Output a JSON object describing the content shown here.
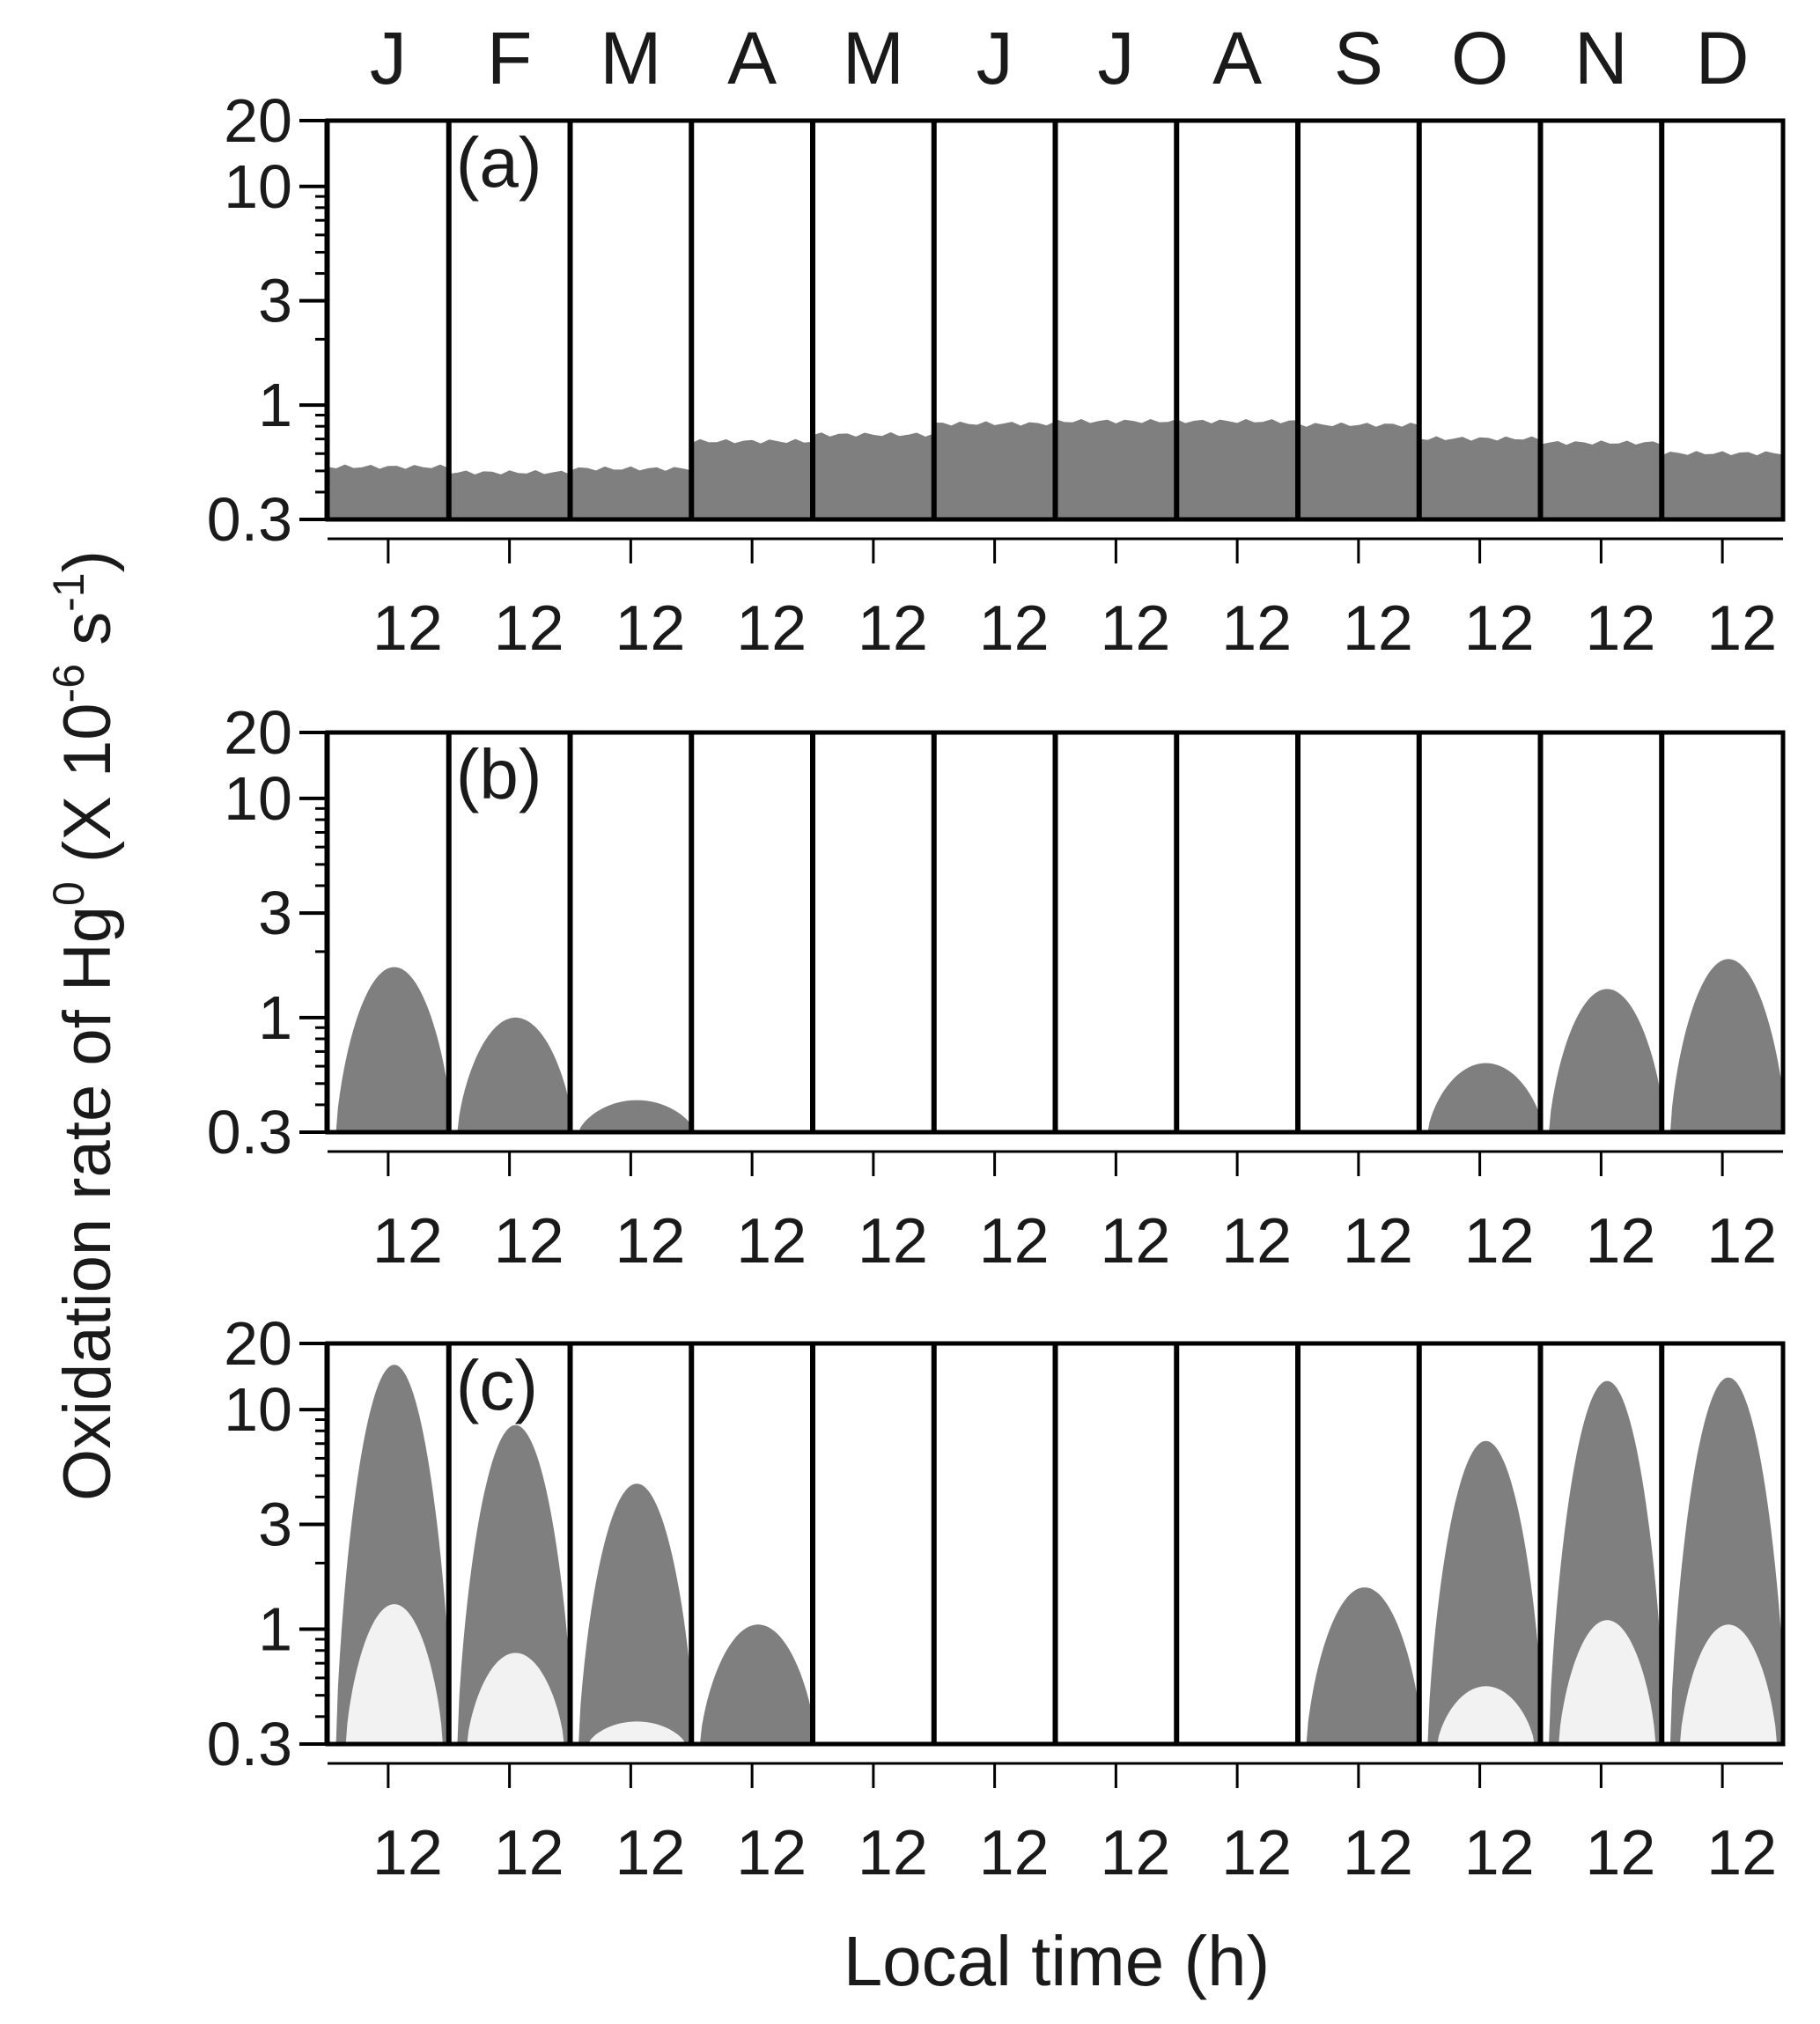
{
  "chart_data": {
    "type": "area",
    "ylabel": "Oxidation rate of Hg",
    "ylabel_sup": "0",
    "ylabel_units_pre": "(X 10",
    "ylabel_units_exp": "-6",
    "ylabel_units_mid": " s",
    "ylabel_units_exp2": "-1",
    "ylabel_units_post": ")",
    "xlabel": "Local time (h)",
    "months": [
      "J",
      "F",
      "M",
      "A",
      "M",
      "J",
      "J",
      "A",
      "S",
      "O",
      "N",
      "D"
    ],
    "x_tick_label": "12",
    "y_scale": "log",
    "ylim": [
      0.3,
      20
    ],
    "y_ticks": [
      0.3,
      1,
      3,
      10,
      20
    ],
    "y_tick_labels": [
      "0.3",
      "1",
      "3",
      "10",
      "20"
    ],
    "colors": {
      "fill_dark": "#7f7f7f",
      "fill_light": "#f2f2f2",
      "frame": "#000000"
    },
    "panels": [
      {
        "label": "(a)",
        "series": [
          {
            "kind": "flat",
            "values": [
              0.52,
              0.49,
              0.51,
              0.68,
              0.73,
              0.82,
              0.84,
              0.84,
              0.81,
              0.7,
              0.67,
              0.6
            ]
          }
        ]
      },
      {
        "label": "(b)",
        "series": [
          {
            "kind": "diurnal",
            "values": [
              1.7,
              1.0,
              0.42,
              0,
              0,
              0,
              0,
              0,
              0,
              0.62,
              1.35,
              1.85
            ]
          }
        ]
      },
      {
        "label": "(c)",
        "series": [
          {
            "kind": "diurnal",
            "values": [
              16,
              8.5,
              4.6,
              1.05,
              0,
              0,
              0,
              0,
              1.55,
              7.2,
              13.5,
              14
            ]
          },
          {
            "kind": "diurnal_inner",
            "values": [
              1.3,
              0.78,
              0.38,
              0,
              0,
              0,
              0,
              0,
              0,
              0.55,
              1.1,
              1.05
            ]
          }
        ]
      }
    ]
  }
}
